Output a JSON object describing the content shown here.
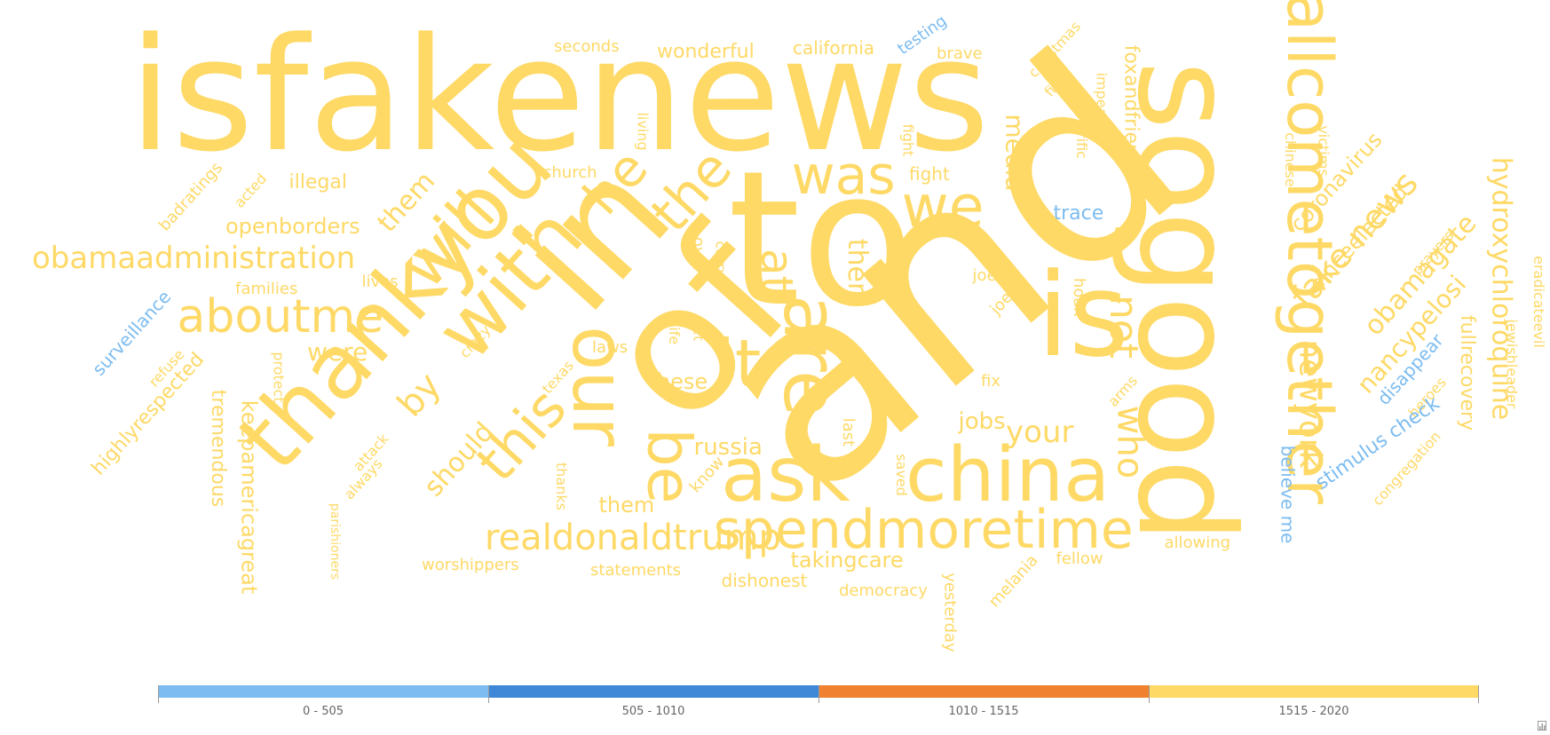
{
  "chart_data": {
    "type": "wordcloud",
    "words": [
      {
        "text": "isfakenews",
        "weight": 2020,
        "color_bin": 3
      },
      {
        "text": "to",
        "weight": 2010,
        "color_bin": 3
      },
      {
        "text": "and",
        "weight": 2000,
        "color_bin": 3
      },
      {
        "text": "of",
        "weight": 1990,
        "color_bin": 3
      },
      {
        "text": "sogood",
        "weight": 1980,
        "color_bin": 3
      },
      {
        "text": "in",
        "weight": 1900,
        "color_bin": 3
      },
      {
        "text": "is",
        "weight": 1880,
        "color_bin": 3
      },
      {
        "text": "allcometogether",
        "weight": 1860,
        "color_bin": 3
      },
      {
        "text": "thankyou",
        "weight": 1850,
        "color_bin": 3
      },
      {
        "text": "ask",
        "weight": 1840,
        "color_bin": 3
      },
      {
        "text": "china",
        "weight": 1840,
        "color_bin": 3
      },
      {
        "text": "are",
        "weight": 1830,
        "color_bin": 3
      },
      {
        "text": "with",
        "weight": 1820,
        "color_bin": 3
      },
      {
        "text": "our",
        "weight": 1810,
        "color_bin": 3
      },
      {
        "text": "it",
        "weight": 1800,
        "color_bin": 3
      },
      {
        "text": "be",
        "weight": 1800,
        "color_bin": 3
      },
      {
        "text": "was",
        "weight": 1790,
        "color_bin": 3
      },
      {
        "text": "we",
        "weight": 1790,
        "color_bin": 3
      },
      {
        "text": "spendmoretime",
        "weight": 1790,
        "color_bin": 3
      },
      {
        "text": "this",
        "weight": 1780,
        "color_bin": 3
      },
      {
        "text": "will",
        "weight": 1780,
        "color_bin": 3
      },
      {
        "text": "aboutme",
        "weight": 1770,
        "color_bin": 3
      },
      {
        "text": "the",
        "weight": 1770,
        "color_bin": 3
      },
      {
        "text": "at",
        "weight": 1760,
        "color_bin": 3
      },
      {
        "text": "not",
        "weight": 1760,
        "color_bin": 3
      },
      {
        "text": "who",
        "weight": 1760,
        "color_bin": 3
      },
      {
        "text": "by",
        "weight": 1760,
        "color_bin": 3
      },
      {
        "text": "he",
        "weight": 1760,
        "color_bin": 3
      },
      {
        "text": "realdonaldtrump",
        "weight": 1750,
        "color_bin": 3
      },
      {
        "text": "fake news",
        "weight": 1750,
        "color_bin": 3
      },
      {
        "text": "newyork",
        "weight": 1750,
        "color_bin": 3
      },
      {
        "text": "hydroxychloroquine",
        "weight": 1740,
        "color_bin": 3
      },
      {
        "text": "obamagate",
        "weight": 1740,
        "color_bin": 3
      },
      {
        "text": "nancypelosi",
        "weight": 1740,
        "color_bin": 3
      },
      {
        "text": "media",
        "weight": 1740,
        "color_bin": 3
      },
      {
        "text": "obamaadministration",
        "weight": 1730,
        "color_bin": 3
      },
      {
        "text": "your",
        "weight": 1730,
        "color_bin": 3
      },
      {
        "text": "should",
        "weight": 1730,
        "color_bin": 3
      },
      {
        "text": "them",
        "weight": 1730,
        "color_bin": 3
      },
      {
        "text": "keepamericagreat",
        "weight": 1720,
        "color_bin": 3
      },
      {
        "text": "coronavirus",
        "weight": 1720,
        "color_bin": 3
      },
      {
        "text": "sinceelected",
        "weight": 1720,
        "color_bin": 3
      },
      {
        "text": "foxandfriends",
        "weight": 1720,
        "color_bin": 3
      },
      {
        "text": "jobs",
        "weight": 1720,
        "color_bin": 3
      },
      {
        "text": "were",
        "weight": 1720,
        "color_bin": 3
      },
      {
        "text": "takingcare",
        "weight": 1710,
        "color_bin": 3
      },
      {
        "text": "openborders",
        "weight": 1710,
        "color_bin": 3
      },
      {
        "text": "russia",
        "weight": 1710,
        "color_bin": 3
      },
      {
        "text": "illegal",
        "weight": 1710,
        "color_bin": 3
      },
      {
        "text": "wonderful",
        "weight": 1710,
        "color_bin": 3
      },
      {
        "text": "california",
        "weight": 1700,
        "color_bin": 3
      },
      {
        "text": "them",
        "weight": 1700,
        "color_bin": 3
      },
      {
        "text": "them",
        "weight": 1700,
        "color_bin": 3
      },
      {
        "text": "these",
        "weight": 1700,
        "color_bin": 3
      },
      {
        "text": "fullrecovery",
        "weight": 1700,
        "color_bin": 3
      },
      {
        "text": "highlyrespected",
        "weight": 1700,
        "color_bin": 3
      },
      {
        "text": "tremendous",
        "weight": 1700,
        "color_bin": 3
      },
      {
        "text": "dishonest",
        "weight": 1700,
        "color_bin": 3
      },
      {
        "text": "fight",
        "weight": 1700,
        "color_bin": 3
      },
      {
        "text": "statements",
        "weight": 1690,
        "color_bin": 3
      },
      {
        "text": "worshippers",
        "weight": 1690,
        "color_bin": 3
      },
      {
        "text": "democracy",
        "weight": 1690,
        "color_bin": 3
      },
      {
        "text": "yesterday",
        "weight": 1690,
        "color_bin": 3
      },
      {
        "text": "melania",
        "weight": 1690,
        "color_bin": 3
      },
      {
        "text": "fellow",
        "weight": 1690,
        "color_bin": 3
      },
      {
        "text": "allowing",
        "weight": 1690,
        "color_bin": 3
      },
      {
        "text": "congregation",
        "weight": 1690,
        "color_bin": 3
      },
      {
        "text": "heroes",
        "weight": 1690,
        "color_bin": 3
      },
      {
        "text": "prayers",
        "weight": 1690,
        "color_bin": 3
      },
      {
        "text": "jewishleader",
        "weight": 1690,
        "color_bin": 3
      },
      {
        "text": "eradicateevil",
        "weight": 1690,
        "color_bin": 3
      },
      {
        "text": "victims",
        "weight": 1690,
        "color_bin": 3
      },
      {
        "text": "chinese",
        "weight": 1690,
        "color_bin": 3
      },
      {
        "text": "hoax",
        "weight": 1690,
        "color_bin": 3
      },
      {
        "text": "arms",
        "weight": 1690,
        "color_bin": 3
      },
      {
        "text": "fix",
        "weight": 1690,
        "color_bin": 3
      },
      {
        "text": "joe",
        "weight": 1690,
        "color_bin": 3
      },
      {
        "text": "joe",
        "weight": 1690,
        "color_bin": 3
      },
      {
        "text": "last",
        "weight": 1690,
        "color_bin": 3
      },
      {
        "text": "saved",
        "weight": 1690,
        "color_bin": 3
      },
      {
        "text": "know",
        "weight": 1690,
        "color_bin": 3
      },
      {
        "text": "laws",
        "weight": 1690,
        "color_bin": 3
      },
      {
        "text": "texas",
        "weight": 1690,
        "color_bin": 3
      },
      {
        "text": "thanks",
        "weight": 1690,
        "color_bin": 3
      },
      {
        "text": "let",
        "weight": 1690,
        "color_bin": 3
      },
      {
        "text": "life",
        "weight": 1690,
        "color_bin": 3
      },
      {
        "text": "over",
        "weight": 1690,
        "color_bin": 3
      },
      {
        "text": "carry",
        "weight": 1690,
        "color_bin": 3
      },
      {
        "text": "living",
        "weight": 1690,
        "color_bin": 3
      },
      {
        "text": "church",
        "weight": 1690,
        "color_bin": 3
      },
      {
        "text": "seconds",
        "weight": 1690,
        "color_bin": 3
      },
      {
        "text": "brave",
        "weight": 1690,
        "color_bin": 3
      },
      {
        "text": "christmas",
        "weight": 1690,
        "color_bin": 3
      },
      {
        "text": "fight",
        "weight": 1690,
        "color_bin": 3
      },
      {
        "text": "impeach",
        "weight": 1690,
        "color_bin": 3
      },
      {
        "text": "horific",
        "weight": 1690,
        "color_bin": 3
      },
      {
        "text": "fight",
        "weight": 1690,
        "color_bin": 3
      },
      {
        "text": "families",
        "weight": 1690,
        "color_bin": 3
      },
      {
        "text": "lives",
        "weight": 1690,
        "color_bin": 3
      },
      {
        "text": "badratings",
        "weight": 1690,
        "color_bin": 3
      },
      {
        "text": "acted",
        "weight": 1690,
        "color_bin": 3
      },
      {
        "text": "crazy",
        "weight": 1690,
        "color_bin": 3
      },
      {
        "text": "refuse",
        "weight": 1690,
        "color_bin": 3
      },
      {
        "text": "protect",
        "weight": 1690,
        "color_bin": 3
      },
      {
        "text": "attack",
        "weight": 1690,
        "color_bin": 3
      },
      {
        "text": "always",
        "weight": 1690,
        "color_bin": 3
      },
      {
        "text": "parishioners",
        "weight": 1690,
        "color_bin": 3
      },
      {
        "text": "trace",
        "weight": 20,
        "color_bin": 0
      },
      {
        "text": "testing",
        "weight": 20,
        "color_bin": 0
      },
      {
        "text": "surveillance",
        "weight": 20,
        "color_bin": 0
      },
      {
        "text": "believe me",
        "weight": 20,
        "color_bin": 0
      },
      {
        "text": "stimulus check",
        "weight": 20,
        "color_bin": 0
      },
      {
        "text": "disappear",
        "weight": 20,
        "color_bin": 0
      }
    ],
    "color_axis": {
      "bins": [
        {
          "label": "0 - 505",
          "color": "#7cbcf0"
        },
        {
          "label": "505 - 1010",
          "color": "#3f88d8"
        },
        {
          "label": "1010 - 1515",
          "color": "#f0822f"
        },
        {
          "label": "1515 - 2020",
          "color": "#fed966"
        }
      ],
      "placement": "bottom"
    },
    "colors": {
      "low": "#7cbcf0",
      "high": "#fed966"
    }
  }
}
